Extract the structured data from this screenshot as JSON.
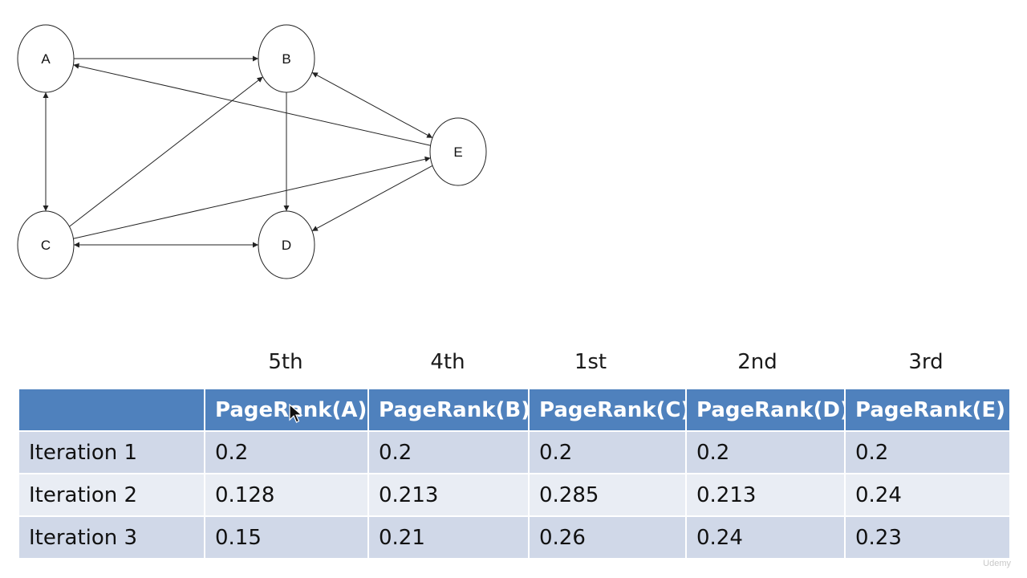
{
  "graph": {
    "nodes": [
      {
        "id": "A",
        "label": "A"
      },
      {
        "id": "B",
        "label": "B"
      },
      {
        "id": "C",
        "label": "C"
      },
      {
        "id": "D",
        "label": "D"
      },
      {
        "id": "E",
        "label": "E"
      }
    ],
    "edges": [
      {
        "from": "A",
        "to": "B",
        "bidirectional": false
      },
      {
        "from": "E",
        "to": "A",
        "bidirectional": false
      },
      {
        "from": "A",
        "to": "C",
        "bidirectional": true
      },
      {
        "from": "C",
        "to": "B",
        "bidirectional": false
      },
      {
        "from": "B",
        "to": "D",
        "bidirectional": false
      },
      {
        "from": "B",
        "to": "E",
        "bidirectional": true
      },
      {
        "from": "C",
        "to": "E",
        "bidirectional": false
      },
      {
        "from": "C",
        "to": "D",
        "bidirectional": true
      },
      {
        "from": "E",
        "to": "D",
        "bidirectional": false
      }
    ]
  },
  "ranks": [
    "5th",
    "4th",
    "1st",
    "2nd",
    "3rd"
  ],
  "table": {
    "headers": [
      "",
      "PageRank(A)",
      "PageRank(B)",
      "PageRank(C)",
      "PageRank(D)",
      "PageRank(E)"
    ],
    "rows": [
      [
        "Iteration 1",
        "0.2",
        "0.2",
        "0.2",
        "0.2",
        "0.2"
      ],
      [
        "Iteration 2",
        "0.128",
        "0.213",
        "0.285",
        "0.213",
        "0.24"
      ],
      [
        "Iteration 3",
        "0.15",
        "0.21",
        "0.26",
        "0.24",
        "0.23"
      ]
    ]
  },
  "watermark": "Udemy"
}
